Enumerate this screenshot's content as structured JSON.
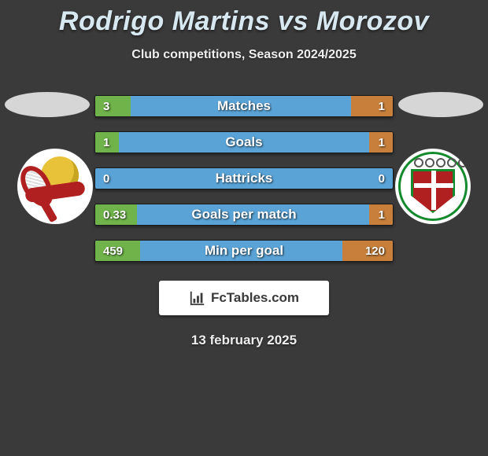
{
  "title": "Rodrigo Martins vs Morozov",
  "subtitle": "Club competitions, Season 2024/2025",
  "date": "13 february 2025",
  "branding": "FcTables.com",
  "colors": {
    "background": "#3a3a3a",
    "title": "#d8e8f0",
    "bar_track": "#5aa3d6",
    "bar_left": "#6fb34a",
    "bar_right": "#c77f3b",
    "ellipse": "#d6d6d6",
    "branding_bg": "#ffffff",
    "branding_text": "#3a3a3a"
  },
  "bars": [
    {
      "label": "Matches",
      "left_value": "3",
      "right_value": "1",
      "left_width_pct": 12,
      "right_width_pct": 14
    },
    {
      "label": "Goals",
      "left_value": "1",
      "right_value": "1",
      "left_width_pct": 8,
      "right_width_pct": 8
    },
    {
      "label": "Hattricks",
      "left_value": "0",
      "right_value": "0",
      "left_width_pct": 0,
      "right_width_pct": 0
    },
    {
      "label": "Goals per match",
      "left_value": "0.33",
      "right_value": "1",
      "left_width_pct": 14,
      "right_width_pct": 8
    },
    {
      "label": "Min per goal",
      "left_value": "459",
      "right_value": "120",
      "left_width_pct": 15,
      "right_width_pct": 17
    }
  ]
}
